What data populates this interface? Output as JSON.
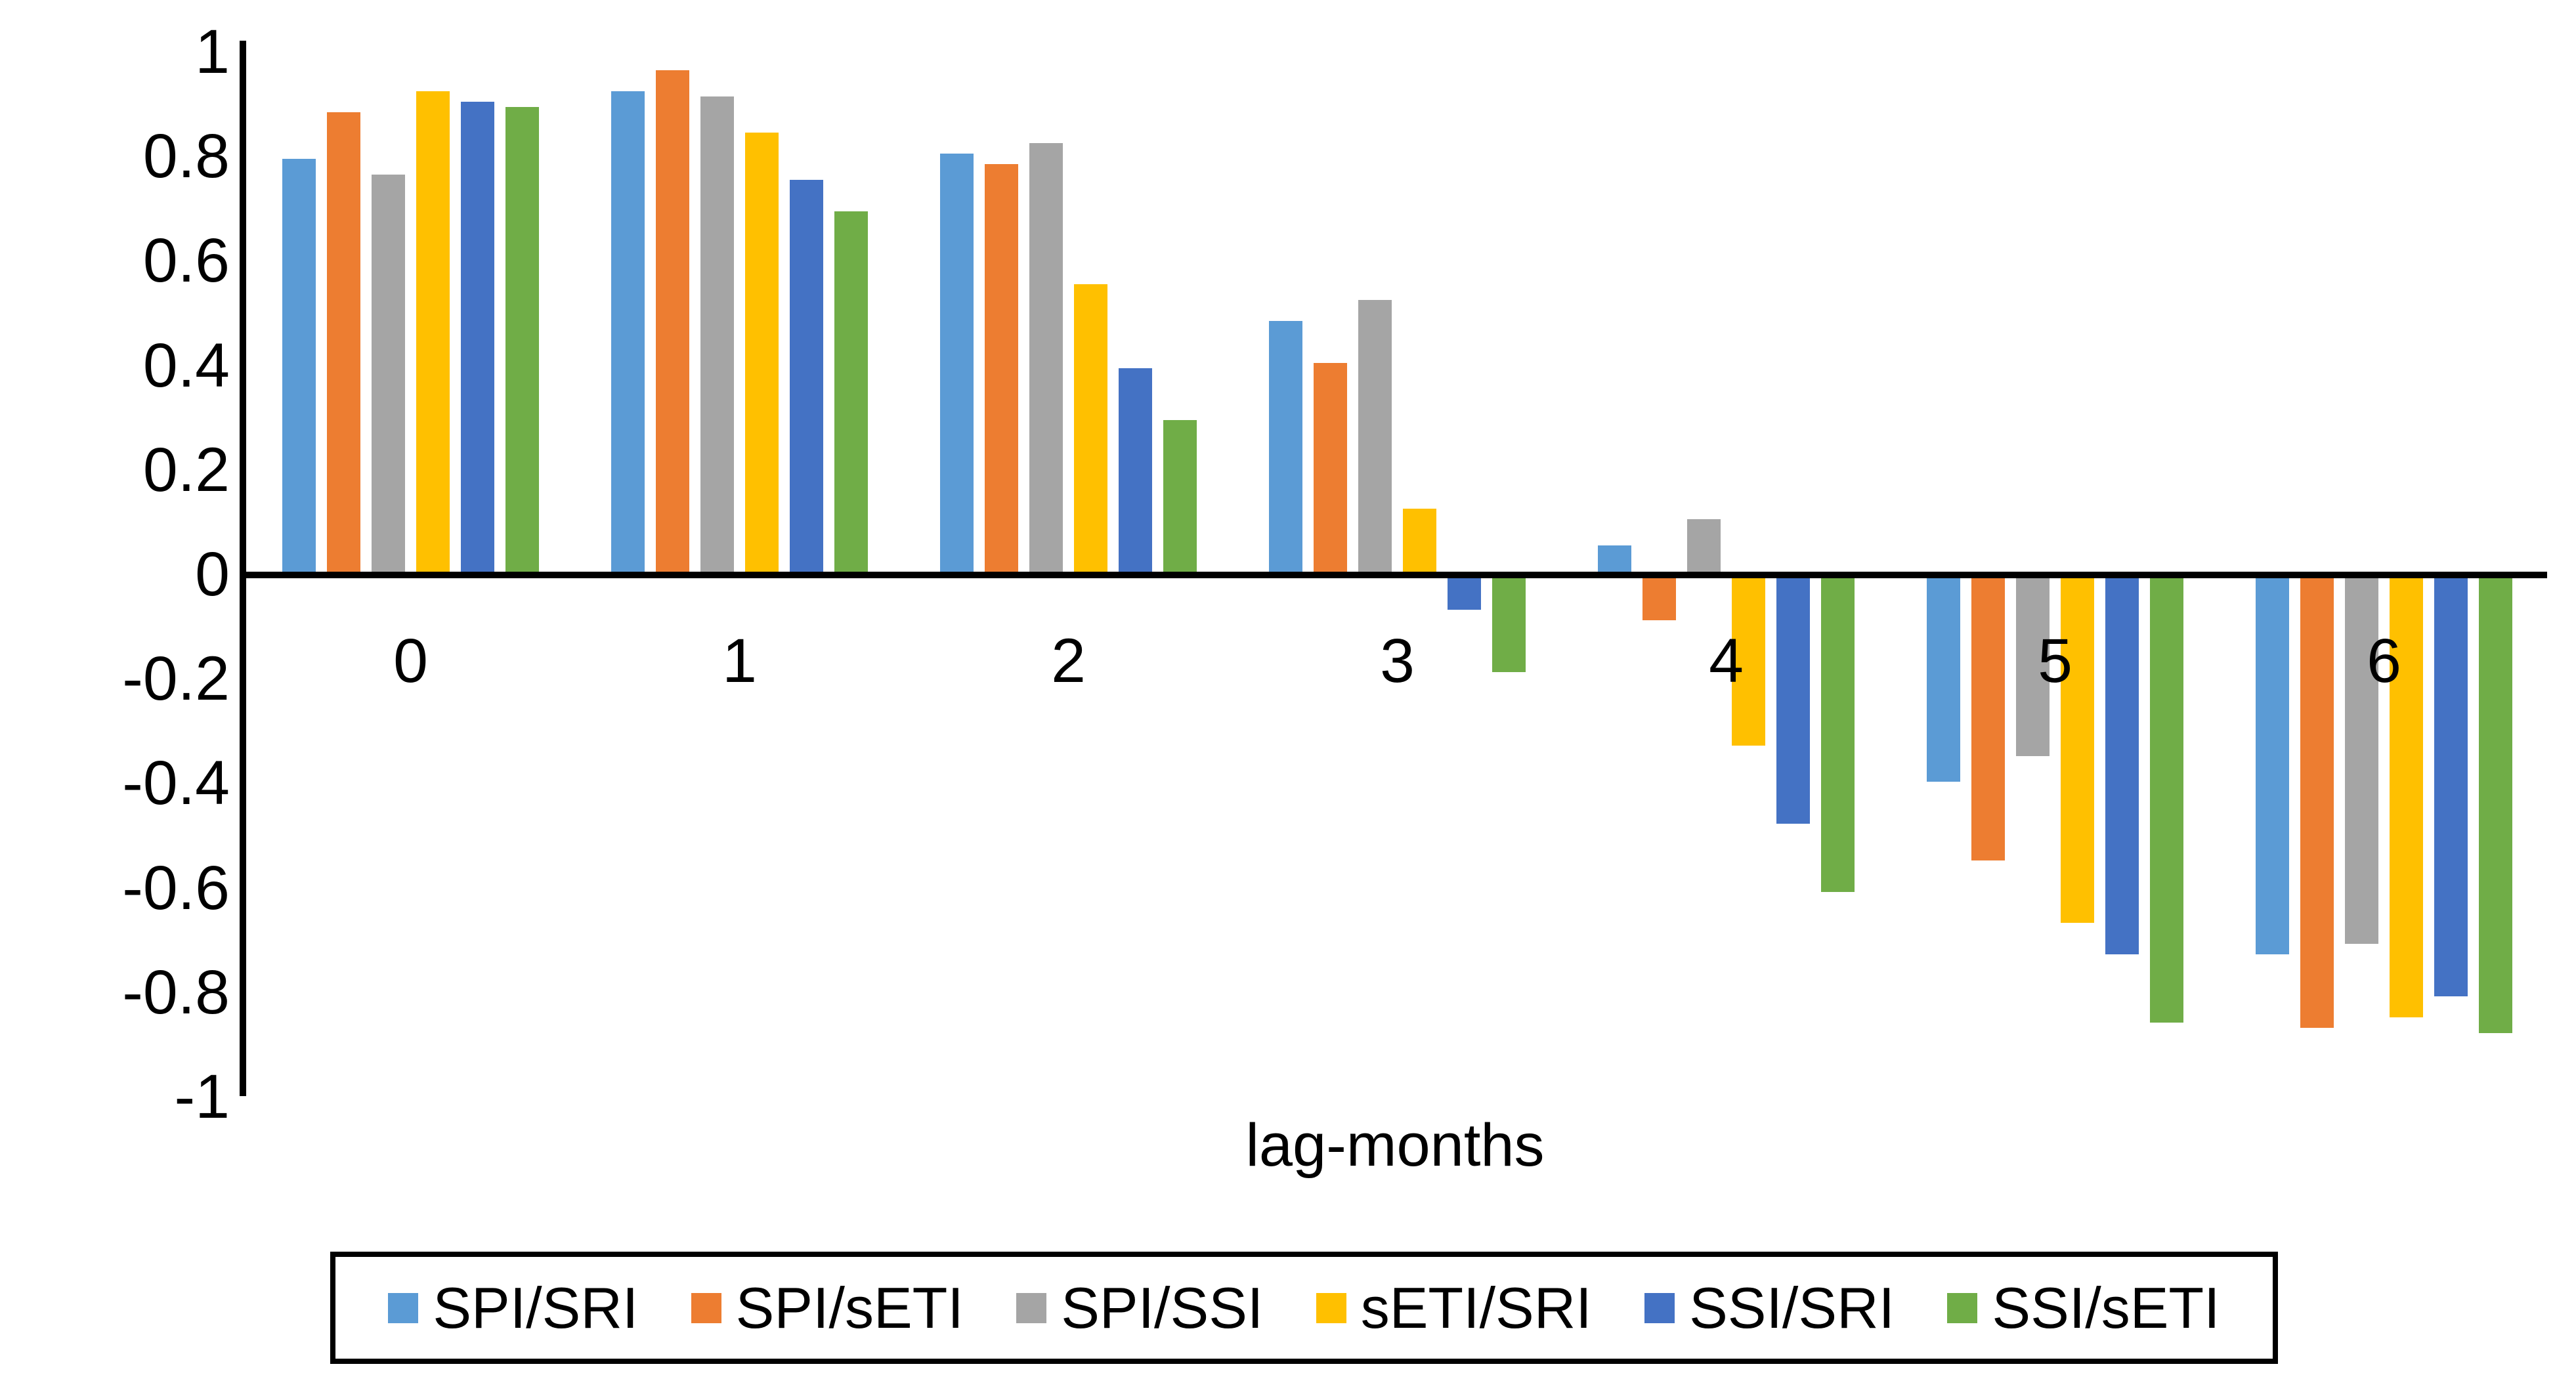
{
  "chart_data": {
    "type": "bar",
    "title": "",
    "xlabel": "lag-months",
    "ylabel": "",
    "ylim": [
      -1,
      1
    ],
    "grid": false,
    "legend_position": "bottom",
    "axis_color": "#000000",
    "background_color": "#ffffff",
    "y_tick_labels": [
      "1",
      "0.8",
      "0.6",
      "0.4",
      "0.2",
      "0",
      "-0.2",
      "-0.4",
      "-0.6",
      "-0.8",
      "-1"
    ],
    "categories": [
      "0",
      "1",
      "2",
      "3",
      "4",
      "5",
      "6"
    ],
    "series": [
      {
        "name": "SPI/SRI",
        "color": "#5B9BD5",
        "values": [
          0.79,
          0.92,
          0.8,
          0.48,
          0.05,
          -0.39,
          -0.72
        ]
      },
      {
        "name": "SPI/sETI",
        "color": "#ED7D31",
        "values": [
          0.88,
          0.96,
          0.78,
          0.4,
          -0.08,
          -0.54,
          -0.86
        ]
      },
      {
        "name": "SPI/SSI",
        "color": "#A5A5A5",
        "values": [
          0.76,
          0.91,
          0.82,
          0.52,
          0.1,
          -0.34,
          -0.7
        ]
      },
      {
        "name": "sETI/SRI",
        "color": "#FFC000",
        "values": [
          0.92,
          0.84,
          0.55,
          0.12,
          -0.32,
          -0.66,
          -0.84
        ]
      },
      {
        "name": "SSI/SRI",
        "color": "#4472C4",
        "values": [
          0.9,
          0.75,
          0.39,
          -0.06,
          -0.47,
          -0.72,
          -0.8
        ]
      },
      {
        "name": "SSI/sETI",
        "color": "#70AD47",
        "values": [
          0.89,
          0.69,
          0.29,
          -0.18,
          -0.6,
          -0.85,
          -0.87
        ]
      }
    ]
  }
}
